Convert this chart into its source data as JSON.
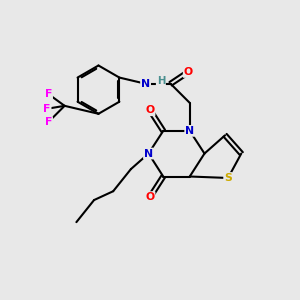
{
  "bg_color": "#e8e8e8",
  "bond_color": "#000000",
  "atom_colors": {
    "N": "#0000cc",
    "O": "#ff0000",
    "S": "#ccaa00",
    "F": "#ff00ff",
    "H": "#4a9090",
    "C": "#000000"
  },
  "figsize": [
    3.0,
    3.0
  ],
  "dpi": 100
}
